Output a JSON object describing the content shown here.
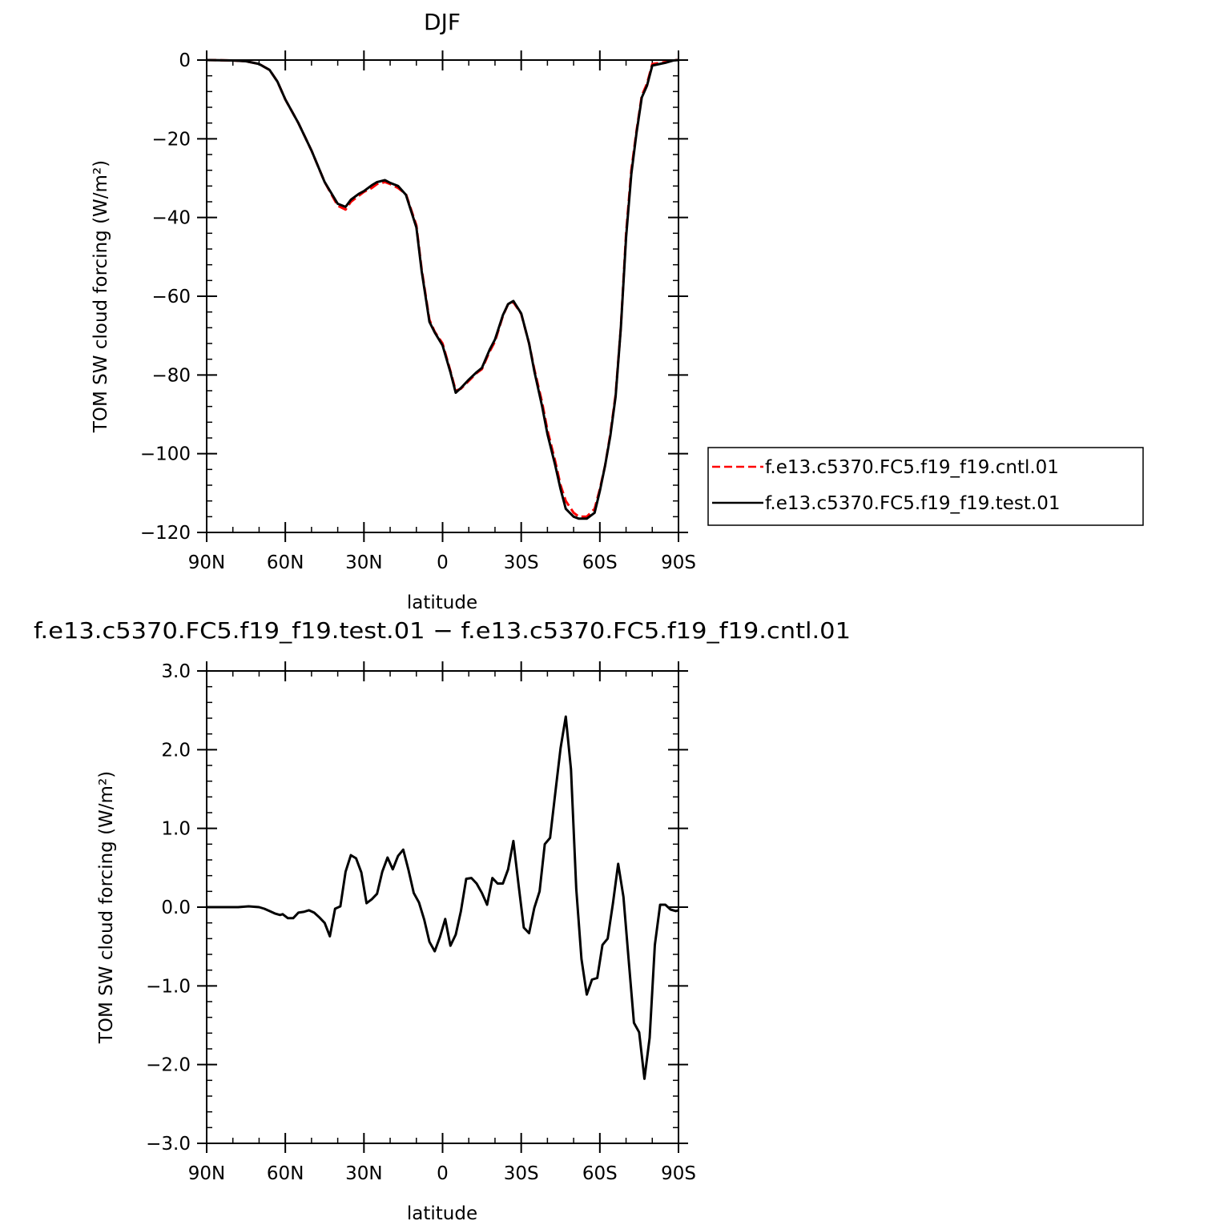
{
  "chart_data": [
    {
      "type": "line",
      "title": "DJF",
      "xlabel": "latitude",
      "ylabel": "TOM SW cloud forcing (W/m²)",
      "xlim": [
        90,
        -90
      ],
      "ylim": [
        -120,
        0
      ],
      "xticks": [
        90,
        60,
        30,
        0,
        -30,
        -60,
        -90
      ],
      "xtick_labels": [
        "90N",
        "60N",
        "30N",
        "0",
        "30S",
        "60S",
        "90S"
      ],
      "yticks": [
        0,
        -20,
        -40,
        -60,
        -80,
        -100,
        -120
      ],
      "ytick_labels": [
        "0",
        "−20",
        "−40",
        "−60",
        "−80",
        "−100",
        "−120"
      ],
      "legend": "right",
      "series": [
        {
          "name": "f.e13.c5370.FC5.f19_f19.cntl.01",
          "color": "#ff0000",
          "dash": "dashed",
          "x": [
            90,
            80,
            75,
            70,
            66,
            63,
            60,
            55,
            50,
            45,
            40,
            37,
            35,
            32,
            30,
            27,
            25,
            22,
            20,
            17,
            14,
            10,
            8,
            5,
            3,
            0,
            -3,
            -5,
            -7,
            -10,
            -13,
            -15,
            -18,
            -20,
            -23,
            -25,
            -27,
            -30,
            -33,
            -35,
            -38,
            -40,
            -43,
            -45,
            -47,
            -50,
            -52,
            -55,
            -58,
            -60,
            -62,
            -64,
            -66,
            -68,
            -70,
            -72,
            -74,
            -76,
            -78,
            -80,
            -85,
            -88,
            -90
          ],
          "values": [
            0,
            -0.1,
            -0.3,
            -1.0,
            -2.5,
            -5.5,
            -10,
            -16,
            -23,
            -31,
            -37,
            -38,
            -36,
            -34.5,
            -33.5,
            -32.5,
            -31.5,
            -31,
            -31.5,
            -32.5,
            -34,
            -42,
            -53,
            -66,
            -69,
            -72,
            -79,
            -84,
            -83.5,
            -81.5,
            -79.5,
            -78.5,
            -74,
            -71.5,
            -65,
            -62,
            -61.5,
            -64.5,
            -72,
            -78.5,
            -87,
            -94,
            -102,
            -108,
            -112,
            -115,
            -116,
            -116,
            -114,
            -109,
            -103,
            -95,
            -85,
            -68,
            -44,
            -28,
            -18,
            -9,
            -6,
            -1,
            -0.5,
            0,
            0
          ]
        },
        {
          "name": "f.e13.c5370.FC5.f19_f19.test.01",
          "color": "#000000",
          "dash": "solid",
          "x": [
            90,
            80,
            75,
            70,
            66,
            63,
            60,
            55,
            50,
            45,
            40,
            37,
            35,
            32,
            30,
            27,
            25,
            22,
            20,
            17,
            14,
            10,
            8,
            5,
            3,
            0,
            -3,
            -5,
            -7,
            -10,
            -13,
            -15,
            -18,
            -20,
            -23,
            -25,
            -27,
            -30,
            -33,
            -35,
            -38,
            -40,
            -43,
            -45,
            -47,
            -50,
            -52,
            -55,
            -58,
            -60,
            -62,
            -64,
            -66,
            -68,
            -70,
            -72,
            -74,
            -76,
            -78,
            -80,
            -85,
            -88,
            -90
          ],
          "values": [
            0,
            -0.1,
            -0.3,
            -1.0,
            -2.5,
            -5.5,
            -10,
            -16,
            -23,
            -31,
            -36.5,
            -37.3,
            -35.5,
            -34,
            -33.3,
            -31.8,
            -31,
            -30.5,
            -31.2,
            -32,
            -34.2,
            -42.5,
            -53.5,
            -66.5,
            -69.2,
            -72.5,
            -79.3,
            -84.5,
            -83.3,
            -81.2,
            -79.3,
            -78.2,
            -73.5,
            -71,
            -64.8,
            -62,
            -61.2,
            -64.4,
            -72,
            -79,
            -88,
            -95,
            -103,
            -109,
            -114,
            -116,
            -116.5,
            -116.5,
            -115,
            -109.5,
            -103,
            -95.5,
            -85.5,
            -68.2,
            -45,
            -29,
            -18.5,
            -9.5,
            -6.5,
            -1.4,
            -0.7,
            -0.1,
            0
          ]
        }
      ]
    },
    {
      "type": "line",
      "title": "f.e13.c5370.FC5.f19_f19.test.01 − f.e13.c5370.FC5.f19_f19.cntl.01",
      "xlabel": "latitude",
      "ylabel": "TOM SW cloud forcing (W/m²)",
      "xlim": [
        90,
        -90
      ],
      "ylim": [
        -3.0,
        3.0
      ],
      "xticks": [
        90,
        60,
        30,
        0,
        -30,
        -60,
        -90
      ],
      "xtick_labels": [
        "90N",
        "60N",
        "30N",
        "0",
        "30S",
        "60S",
        "90S"
      ],
      "yticks": [
        3,
        2,
        1,
        0,
        -1,
        -2,
        -3
      ],
      "ytick_labels": [
        "3.0",
        "2.0",
        "1.0",
        "0.0",
        "−1.0",
        "−2.0",
        "−3.0"
      ],
      "series": [
        {
          "color": "#000000",
          "dash": "solid",
          "x": [
            90,
            78,
            74,
            70,
            68,
            66,
            64,
            62,
            61,
            59,
            57,
            55,
            53,
            51,
            49,
            47,
            45,
            43,
            41,
            39,
            37,
            35,
            33,
            31,
            29,
            27,
            25,
            23,
            21,
            19,
            17,
            15,
            13,
            11,
            9,
            7,
            5,
            3,
            1,
            -1,
            -3,
            -5,
            -7,
            -9,
            -11,
            -13,
            -15,
            -17,
            -19,
            -21,
            -23,
            -25,
            -27,
            -29,
            -31,
            -33,
            -35,
            -37,
            -39,
            -41,
            -43,
            -45,
            -47,
            -49,
            -51,
            -53,
            -55,
            -57,
            -59,
            -61,
            -63,
            -65,
            -67,
            -69,
            -71,
            -73,
            -75,
            -77,
            -79,
            -81,
            -83,
            -85,
            -87,
            -89,
            -90
          ],
          "values": [
            0,
            0,
            0.01,
            0,
            -0.02,
            -0.05,
            -0.08,
            -0.1,
            -0.09,
            -0.14,
            -0.14,
            -0.07,
            -0.06,
            -0.04,
            -0.07,
            -0.13,
            -0.2,
            -0.37,
            -0.02,
            0.01,
            0.45,
            0.66,
            0.62,
            0.44,
            0.05,
            0.1,
            0.17,
            0.45,
            0.63,
            0.48,
            0.65,
            0.73,
            0.47,
            0.18,
            0.06,
            -0.16,
            -0.44,
            -0.56,
            -0.38,
            -0.15,
            -0.49,
            -0.35,
            -0.05,
            0.36,
            0.37,
            0.3,
            0.18,
            0.03,
            0.37,
            0.3,
            0.3,
            0.48,
            0.84,
            0.28,
            -0.26,
            -0.33,
            -0.01,
            0.2,
            0.8,
            0.88,
            1.45,
            2.02,
            2.42,
            1.75,
            0.23,
            -0.66,
            -1.11,
            -0.92,
            -0.9,
            -0.48,
            -0.4,
            0.05,
            0.55,
            0.13,
            -0.67,
            -1.47,
            -1.59,
            -2.18,
            -1.66,
            -0.48,
            0.03,
            0.03,
            -0.03,
            -0.05,
            -0.04
          ]
        }
      ]
    }
  ]
}
